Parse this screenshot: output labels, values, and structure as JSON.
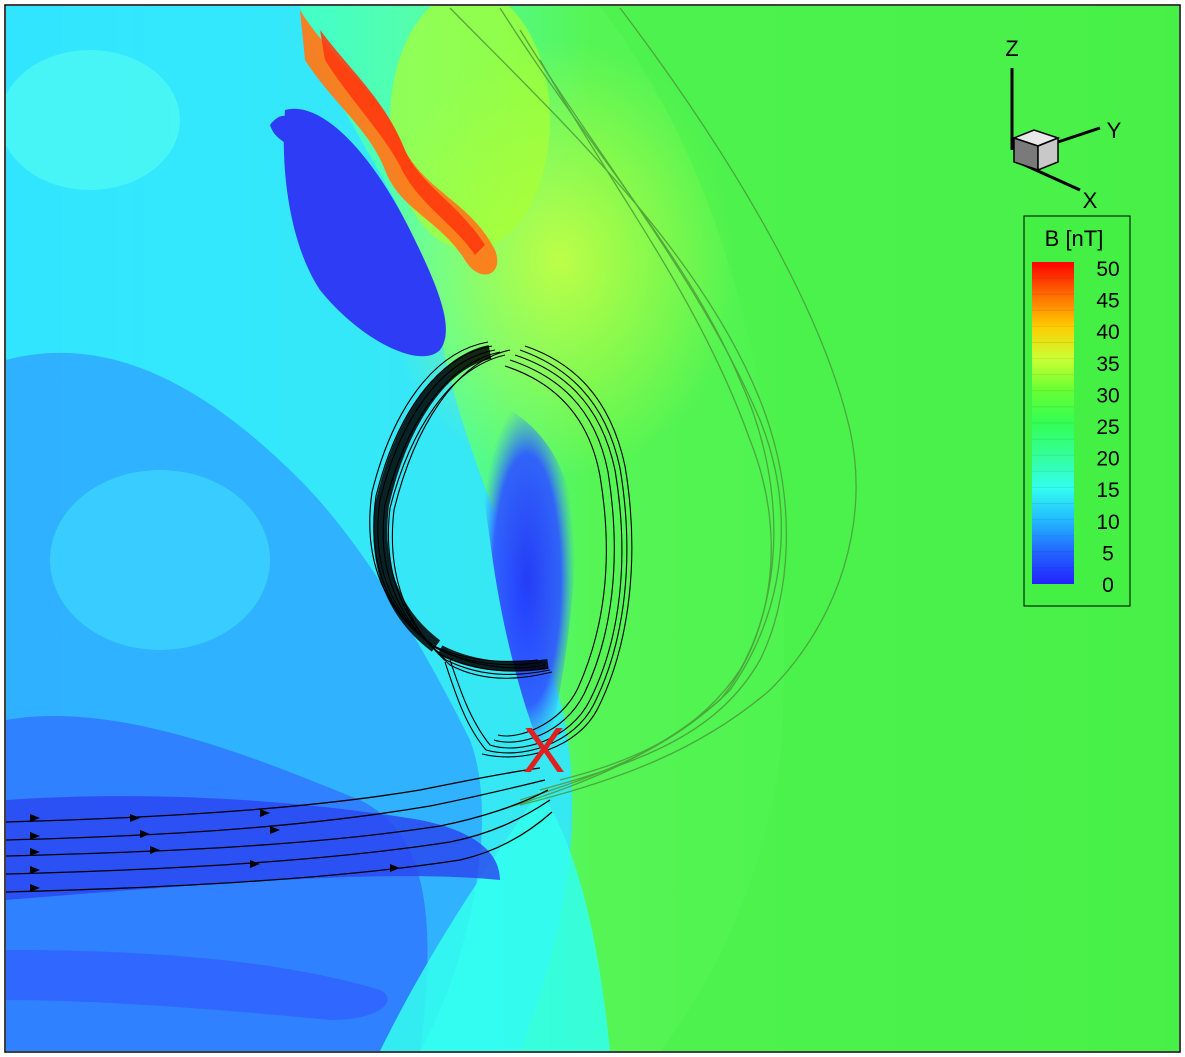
{
  "figure": {
    "quantity": "B [nT]",
    "marker_label": "X"
  },
  "axes_triad": {
    "z_label": "Z",
    "y_label": "Y",
    "x_label": "X"
  },
  "colorbar": {
    "title": "B [nT]",
    "min": 0,
    "max": 50,
    "tick_labels": [
      "50",
      "45",
      "40",
      "35",
      "30",
      "25",
      "20",
      "15",
      "10",
      "5",
      "0"
    ],
    "colors": [
      "#ff0000",
      "#ff6a00",
      "#ffcc00",
      "#ccff33",
      "#66ff33",
      "#33ff55",
      "#33ff99",
      "#33ffee",
      "#22bbff",
      "#2266ff",
      "#2222ff"
    ]
  },
  "colors": {
    "background_field": "#44f044",
    "low_field": "#2f3cf5",
    "high_field": "#ff4a1a",
    "marker": "#e02020",
    "field_lines": "#000000"
  }
}
